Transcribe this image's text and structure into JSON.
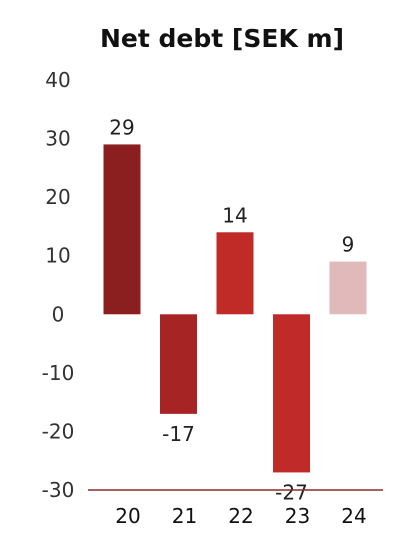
{
  "chart_data": {
    "type": "bar",
    "title": "Net debt [SEK m]",
    "categories": [
      "20",
      "21",
      "22",
      "23",
      "24"
    ],
    "values": [
      29,
      -17,
      14,
      -27,
      9
    ],
    "value_labels": [
      "29",
      "-17",
      "14",
      "-27",
      "9"
    ],
    "ylim": [
      -30,
      40
    ],
    "yticks": [
      40,
      30,
      20,
      10,
      0,
      -10,
      -20,
      -30
    ],
    "ytick_labels": [
      "40",
      "30",
      "20",
      "10",
      "0",
      "-10",
      "-20",
      "-30"
    ],
    "grid": false,
    "bar_colors": [
      "#8b1f1f",
      "#a72424",
      "#c12b27",
      "#c02a28",
      "#e0b9bb"
    ],
    "baseline_color": "#8b2a2a"
  }
}
